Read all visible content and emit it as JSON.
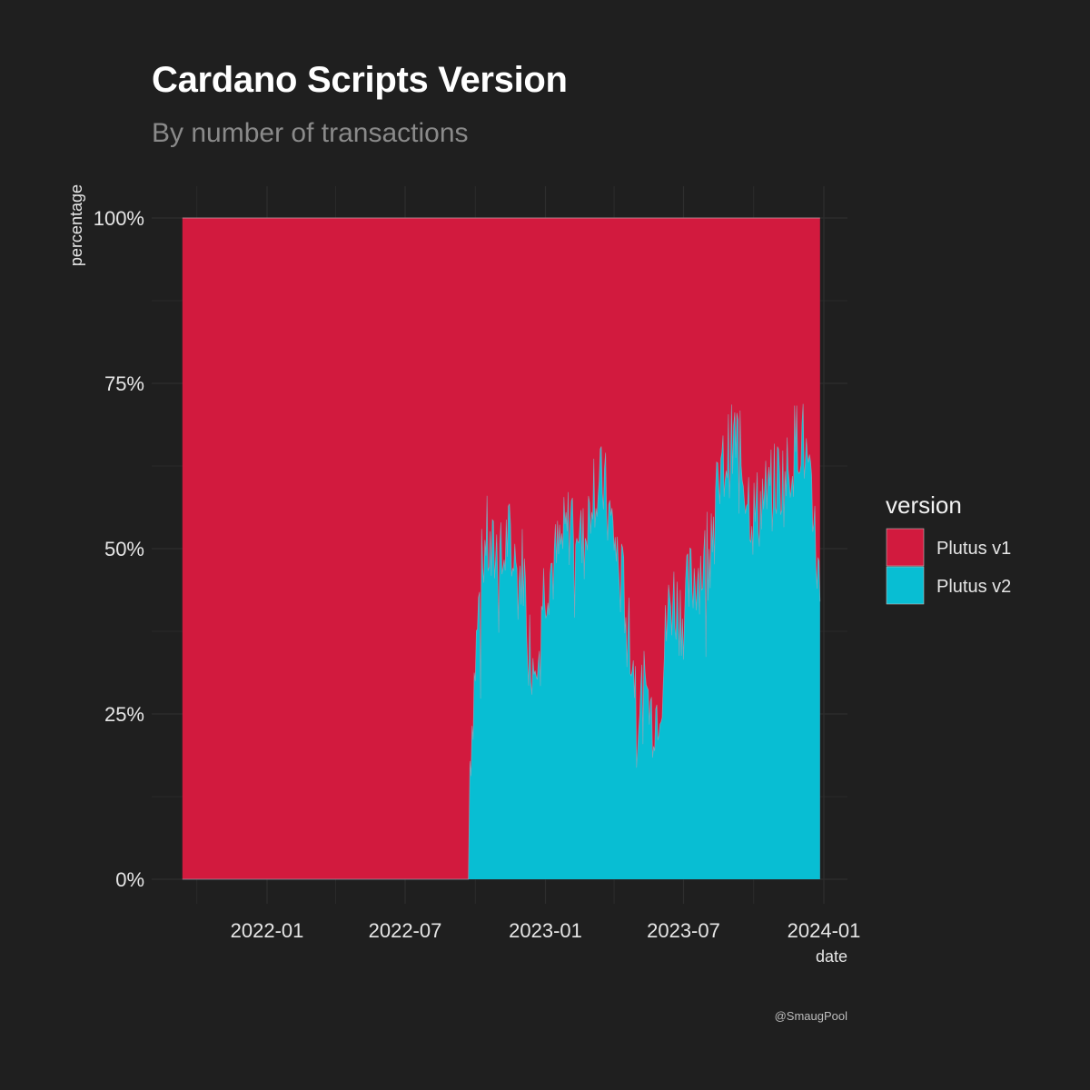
{
  "title": "Cardano Scripts Version",
  "subtitle": "By number of transactions",
  "caption": "@SmaugPool",
  "colors": {
    "background": "#1f1f1f",
    "plutus_v1": "#d21a3e",
    "plutus_v2": "#08bed3",
    "grid": "#2e2e2e"
  },
  "chart_data": {
    "type": "area",
    "stacked": true,
    "normalized": true,
    "xlabel": "date",
    "ylabel": "percentage",
    "x_ticks": [
      "2022-01",
      "2022-07",
      "2023-01",
      "2023-07",
      "2024-01"
    ],
    "y_ticks": [
      "0%",
      "25%",
      "50%",
      "75%",
      "100%"
    ],
    "ylim": [
      0,
      100
    ],
    "xlim": [
      "2021-09-12",
      "2023-12-27"
    ],
    "grid": true,
    "legend": {
      "title": "version",
      "position": "right",
      "entries": [
        "Plutus v1",
        "Plutus v2"
      ]
    },
    "series": [
      {
        "name": "Plutus v1",
        "note": "complement of Plutus v2 (100% minus v2)"
      },
      {
        "name": "Plutus v2",
        "x": [
          "2021-09-12",
          "2022-09-22",
          "2022-09-24",
          "2022-10-01",
          "2022-10-08",
          "2022-10-15",
          "2022-10-22",
          "2022-10-29",
          "2022-11-05",
          "2022-11-12",
          "2022-11-19",
          "2022-11-26",
          "2022-12-03",
          "2022-12-10",
          "2022-12-17",
          "2022-12-24",
          "2022-12-31",
          "2023-01-07",
          "2023-01-14",
          "2023-01-21",
          "2023-01-28",
          "2023-02-04",
          "2023-02-11",
          "2023-02-18",
          "2023-02-25",
          "2023-03-04",
          "2023-03-11",
          "2023-03-18",
          "2023-03-25",
          "2023-04-01",
          "2023-04-08",
          "2023-04-15",
          "2023-04-22",
          "2023-04-29",
          "2023-05-06",
          "2023-05-13",
          "2023-05-20",
          "2023-05-27",
          "2023-06-03",
          "2023-06-10",
          "2023-06-17",
          "2023-06-24",
          "2023-07-01",
          "2023-07-08",
          "2023-07-15",
          "2023-07-22",
          "2023-07-29",
          "2023-08-05",
          "2023-08-12",
          "2023-08-19",
          "2023-08-26",
          "2023-09-02",
          "2023-09-09",
          "2023-09-16",
          "2023-09-23",
          "2023-09-30",
          "2023-10-07",
          "2023-10-14",
          "2023-10-21",
          "2023-10-28",
          "2023-11-04",
          "2023-11-11",
          "2023-11-18",
          "2023-11-25",
          "2023-12-02",
          "2023-12-09",
          "2023-12-16",
          "2023-12-23",
          "2023-12-27"
        ],
        "values": [
          0,
          0,
          18,
          33,
          45,
          52,
          48,
          50,
          47,
          52,
          49,
          45,
          48,
          36,
          33,
          40,
          45,
          47,
          48,
          50,
          52,
          55,
          56,
          50,
          53,
          61,
          58,
          60,
          55,
          52,
          46,
          43,
          37,
          30,
          27,
          28,
          25,
          26,
          30,
          40,
          43,
          41,
          40,
          44,
          46,
          47,
          48,
          54,
          56,
          60,
          64,
          65,
          67,
          62,
          59,
          55,
          56,
          58,
          57,
          60,
          61,
          60,
          63,
          66,
          68,
          63,
          55,
          49,
          42
        ]
      }
    ]
  }
}
